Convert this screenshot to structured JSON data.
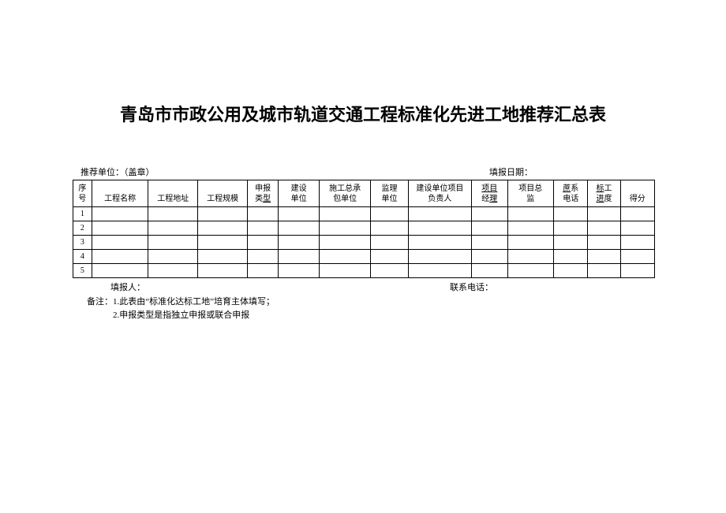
{
  "title": "青岛市市政公用及城市轨道交通工程标准化先进工地推荐汇总表",
  "meta": {
    "recommend_unit_label": "推荐单位：（盖章）",
    "report_date_label": "填报日期："
  },
  "table": {
    "headers": [
      {
        "line1": "序",
        "line2": "号"
      },
      {
        "line1": "",
        "line2": "工程名称"
      },
      {
        "line1": "",
        "line2": "工程地址"
      },
      {
        "line1": "",
        "line2": "工程规模"
      },
      {
        "line1": "申报",
        "line2_a": "类",
        "line2_b": "型"
      },
      {
        "line1": "建设",
        "line2": "单位"
      },
      {
        "line1": "施工总承",
        "line2": "包单位"
      },
      {
        "line1": "监理",
        "line2": "单位"
      },
      {
        "line1": "建设单位项目",
        "line2": "负责人"
      },
      {
        "line1_a": "项目",
        "line1_b": "",
        "line2_a": "经",
        "line2_b": "理"
      },
      {
        "line1": "项目总",
        "line2": "监"
      },
      {
        "line1_a": "蔗",
        "line1_b": "系",
        "line2": "电话"
      },
      {
        "line1_a": "标",
        "line1_b": "工",
        "line2_a": "进",
        "line2_b": "度"
      },
      {
        "line1": "",
        "line2": "得分"
      }
    ],
    "row_numbers": [
      "1",
      "2",
      "3",
      "4",
      "5"
    ]
  },
  "footer": {
    "reporter_label": "填报人：",
    "contact_label": "联系电话："
  },
  "notes": {
    "prefix": "备注：",
    "line1": "1.此表由“标准化达标工地”培育主体填写；",
    "line2": "2.申报类型是指独立申报或联合申报"
  },
  "style": {
    "background": "#ffffff",
    "border_color": "#000000",
    "title_fontsize": 22,
    "body_fontsize": 11,
    "table_fontsize": 10
  }
}
